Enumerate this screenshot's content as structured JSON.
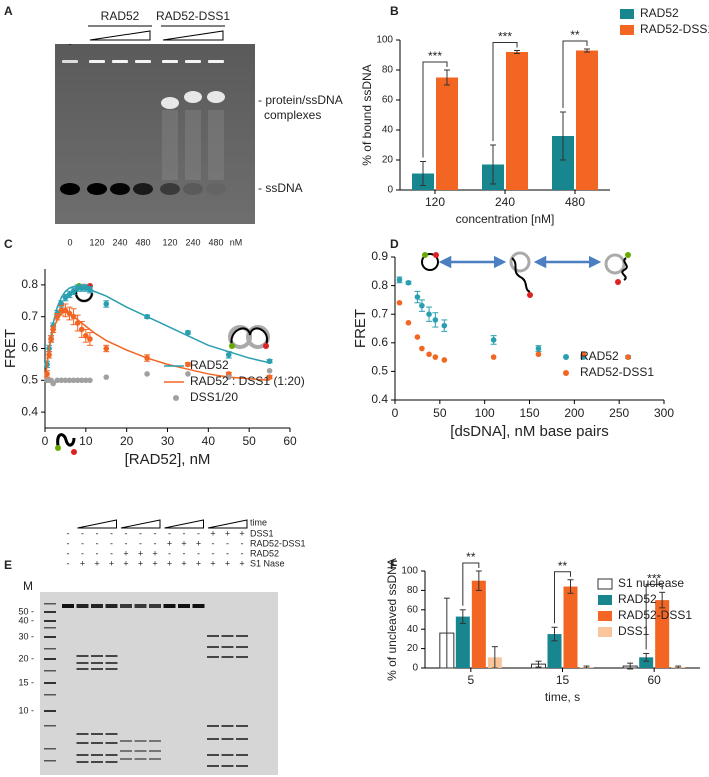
{
  "gel_a": {
    "panel": "A",
    "control_lane": "-",
    "lane_groups": [
      "RAD52",
      "RAD52-DSS1"
    ],
    "band_labels": [
      "- protein/ssDNA",
      "complexes",
      "- ssDNA"
    ],
    "lane_labels": [
      "0",
      "120",
      "240",
      "480",
      "120",
      "240",
      "480"
    ],
    "unit": "nM"
  },
  "gel_e": {
    "panel": "E",
    "marker_lane": "M",
    "marker_sizes": [
      "50 -",
      "40 -",
      "30 -",
      "20 -",
      "15 -",
      "10 -"
    ],
    "time_label": "time",
    "conditions": [
      {
        "name": "DSS1",
        "signs": [
          "-",
          "-",
          "-",
          "-",
          "-",
          "-",
          "-",
          "-",
          "-",
          "-",
          "+",
          "+",
          "+"
        ]
      },
      {
        "name": "RAD52-DSS1",
        "signs": [
          "-",
          "-",
          "-",
          "-",
          "-",
          "-",
          "-",
          "+",
          "+",
          "+",
          "-",
          "-",
          "-"
        ]
      },
      {
        "name": "RAD52",
        "signs": [
          "-",
          "-",
          "-",
          "-",
          "+",
          "+",
          "+",
          "-",
          "-",
          "-",
          "-",
          "-",
          "-"
        ]
      },
      {
        "name": "S1 Nase",
        "signs": [
          "-",
          "+",
          "+",
          "+",
          "+",
          "+",
          "+",
          "+",
          "+",
          "+",
          "+",
          "+",
          "+"
        ]
      }
    ]
  },
  "chart_data": [
    {
      "panel": "B",
      "type": "bar",
      "ylabel": "% of bound ssDNA",
      "xlabel": "concentration [nM]",
      "categories": [
        "120",
        "240",
        "480"
      ],
      "ylim": [
        0,
        100
      ],
      "yticks": [
        0,
        20,
        40,
        60,
        80,
        100
      ],
      "series": [
        {
          "name": "RAD52",
          "color": "#17868f",
          "values": [
            11,
            17,
            36
          ],
          "errors": [
            8,
            13,
            16
          ]
        },
        {
          "name": "RAD52-DSS1",
          "color": "#f26522",
          "values": [
            75,
            92,
            93
          ],
          "errors": [
            5,
            1,
            1
          ]
        }
      ],
      "significance": [
        "***",
        "***",
        "**"
      ]
    },
    {
      "panel": "C",
      "type": "scatter",
      "ylabel": "FRET",
      "xlabel": "[RAD52], nM",
      "xlim": [
        0,
        60
      ],
      "xticks": [
        0,
        10,
        20,
        30,
        40,
        50,
        60
      ],
      "ylim": [
        0.35,
        0.85
      ],
      "yticks": [
        0.4,
        0.5,
        0.6,
        0.7,
        0.8
      ],
      "series": [
        {
          "name": "RAD52",
          "color": "#2a9fb0",
          "x": [
            0.5,
            1,
            1.5,
            2,
            3,
            4,
            5,
            6,
            7,
            8,
            9,
            10,
            11,
            15,
            25,
            35,
            45,
            55
          ],
          "values": [
            0.55,
            0.6,
            0.63,
            0.67,
            0.71,
            0.74,
            0.76,
            0.77,
            0.78,
            0.79,
            0.79,
            0.79,
            0.785,
            0.74,
            0.7,
            0.65,
            0.58,
            0.56
          ],
          "errors": [
            0.01,
            0.01,
            0.01,
            0.01,
            0.01,
            0.01,
            0.01,
            0.01,
            0.01,
            0.01,
            0.01,
            0.01,
            0.01,
            0.01,
            0.005,
            0.005,
            0.01,
            0.005
          ],
          "fit": {
            "x": [
              0,
              1,
              2,
              3,
              4,
              5,
              6,
              7,
              8,
              10,
              12,
              15,
              20,
              25,
              30,
              35,
              40,
              45,
              50,
              55
            ],
            "values": [
              0.5,
              0.6,
              0.68,
              0.73,
              0.76,
              0.78,
              0.79,
              0.795,
              0.795,
              0.79,
              0.78,
              0.765,
              0.73,
              0.7,
              0.67,
              0.64,
              0.61,
              0.59,
              0.57,
              0.555
            ]
          }
        },
        {
          "name": "RAD52 : DSS1 (1:20)",
          "color": "#f26522",
          "x": [
            0.5,
            1,
            1.5,
            2,
            3,
            4,
            5,
            6,
            7,
            8,
            9,
            10,
            11,
            15,
            25,
            35,
            45,
            55
          ],
          "values": [
            0.52,
            0.58,
            0.63,
            0.66,
            0.7,
            0.72,
            0.72,
            0.71,
            0.7,
            0.68,
            0.66,
            0.64,
            0.63,
            0.6,
            0.57,
            0.55,
            0.52,
            0.51
          ],
          "errors": [
            0.01,
            0.01,
            0.01,
            0.01,
            0.01,
            0.015,
            0.02,
            0.02,
            0.025,
            0.025,
            0.025,
            0.02,
            0.02,
            0.01,
            0.01,
            0.005,
            0.005,
            0.005
          ],
          "fit": {
            "x": [
              0,
              1,
              2,
              3,
              4,
              5,
              6,
              7,
              8,
              10,
              12,
              15,
              20,
              25,
              30,
              35,
              40,
              45,
              50,
              55
            ],
            "values": [
              0.5,
              0.6,
              0.66,
              0.69,
              0.71,
              0.715,
              0.71,
              0.7,
              0.69,
              0.67,
              0.65,
              0.625,
              0.595,
              0.57,
              0.55,
              0.535,
              0.52,
              0.51,
              0.505,
              0.5
            ]
          }
        },
        {
          "name": "DSS1/20",
          "color": "#a0a0a0",
          "x": [
            0.5,
            1,
            1.5,
            2,
            3,
            4,
            5,
            6,
            7,
            8,
            9,
            10,
            11,
            15,
            25,
            35,
            45,
            55
          ],
          "values": [
            0.5,
            0.5,
            0.5,
            0.49,
            0.5,
            0.5,
            0.5,
            0.5,
            0.5,
            0.5,
            0.5,
            0.5,
            0.5,
            0.51,
            0.52,
            0.52,
            0.51,
            0.53
          ]
        }
      ]
    },
    {
      "panel": "D",
      "type": "scatter",
      "ylabel": "FRET",
      "xlabel": "[dsDNA], nM base pairs",
      "xlim": [
        0,
        300
      ],
      "xticks": [
        0,
        50,
        100,
        150,
        200,
        250,
        300
      ],
      "ylim": [
        0.4,
        0.9
      ],
      "yticks": [
        0.4,
        0.5,
        0.6,
        0.7,
        0.8,
        0.9
      ],
      "series": [
        {
          "name": "RAD52",
          "color": "#2a9fb0",
          "x": [
            5,
            15,
            25,
            30,
            38,
            45,
            55,
            110,
            160,
            210,
            260
          ],
          "values": [
            0.82,
            0.81,
            0.76,
            0.73,
            0.7,
            0.68,
            0.66,
            0.61,
            0.58,
            0.55,
            0.55
          ],
          "errors": [
            0.01,
            0.005,
            0.02,
            0.02,
            0.025,
            0.025,
            0.02,
            0.015,
            0.01,
            0.005,
            0.005
          ]
        },
        {
          "name": "RAD52-DSS1",
          "color": "#f26522",
          "x": [
            5,
            15,
            25,
            30,
            38,
            45,
            55,
            110,
            160,
            210,
            260
          ],
          "values": [
            0.74,
            0.67,
            0.62,
            0.58,
            0.56,
            0.55,
            0.54,
            0.55,
            0.56,
            0.56,
            0.55
          ]
        }
      ]
    },
    {
      "panel": "F",
      "type": "bar",
      "ylabel": "% of uncleaved ssDNA",
      "xlabel": "time, s",
      "categories": [
        "5",
        "15",
        "60"
      ],
      "ylim": [
        0,
        100
      ],
      "yticks": [
        0,
        20,
        40,
        60,
        80,
        100
      ],
      "series": [
        {
          "name": "S1 nuclease",
          "color": "#ffffff",
          "edgecolor": "#333333",
          "values": [
            36,
            4,
            2
          ],
          "errors": [
            36,
            3,
            3
          ]
        },
        {
          "name": "RAD52",
          "color": "#17868f",
          "values": [
            53,
            35,
            11
          ],
          "errors": [
            7,
            7,
            4
          ]
        },
        {
          "name": "RAD52-DSS1",
          "color": "#f26522",
          "values": [
            90,
            84,
            70
          ],
          "errors": [
            10,
            7,
            8
          ]
        },
        {
          "name": "DSS1",
          "color": "#f9c59b",
          "values": [
            11,
            1,
            1
          ],
          "errors": [
            11,
            1,
            1
          ]
        }
      ],
      "significance": [
        "**",
        "**",
        "***"
      ]
    }
  ]
}
